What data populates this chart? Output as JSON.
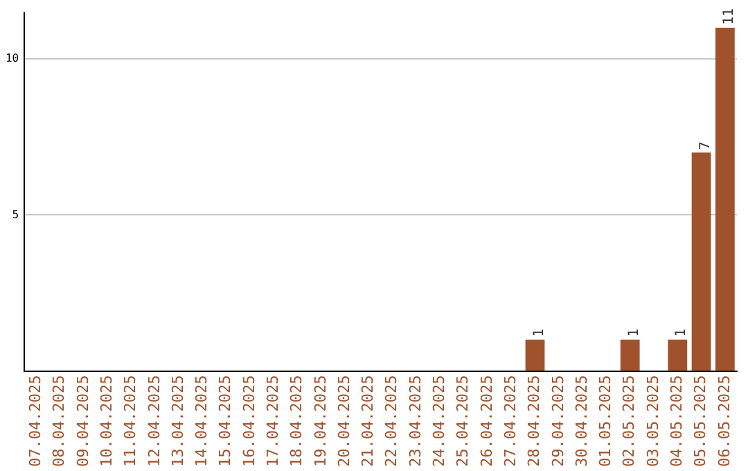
{
  "chart_data": {
    "type": "bar",
    "categories": [
      "07.04.2025",
      "08.04.2025",
      "09.04.2025",
      "10.04.2025",
      "11.04.2025",
      "12.04.2025",
      "13.04.2025",
      "14.04.2025",
      "15.04.2025",
      "16.04.2025",
      "17.04.2025",
      "18.04.2025",
      "19.04.2025",
      "20.04.2025",
      "21.04.2025",
      "22.04.2025",
      "23.04.2025",
      "24.04.2025",
      "25.04.2025",
      "26.04.2025",
      "27.04.2025",
      "28.04.2025",
      "29.04.2025",
      "30.04.2025",
      "01.05.2025",
      "02.05.2025",
      "03.05.2025",
      "04.05.2025",
      "05.05.2025",
      "06.05.2025"
    ],
    "values": [
      null,
      null,
      null,
      null,
      null,
      null,
      null,
      null,
      null,
      null,
      null,
      null,
      null,
      null,
      null,
      null,
      null,
      null,
      null,
      null,
      null,
      1,
      null,
      null,
      null,
      1,
      null,
      1,
      7,
      11
    ],
    "color": "#a0522d",
    "ylim": [
      0,
      11.5
    ],
    "yticks": [
      5,
      10
    ],
    "grid": "y",
    "data_labels": true,
    "legend": false
  }
}
